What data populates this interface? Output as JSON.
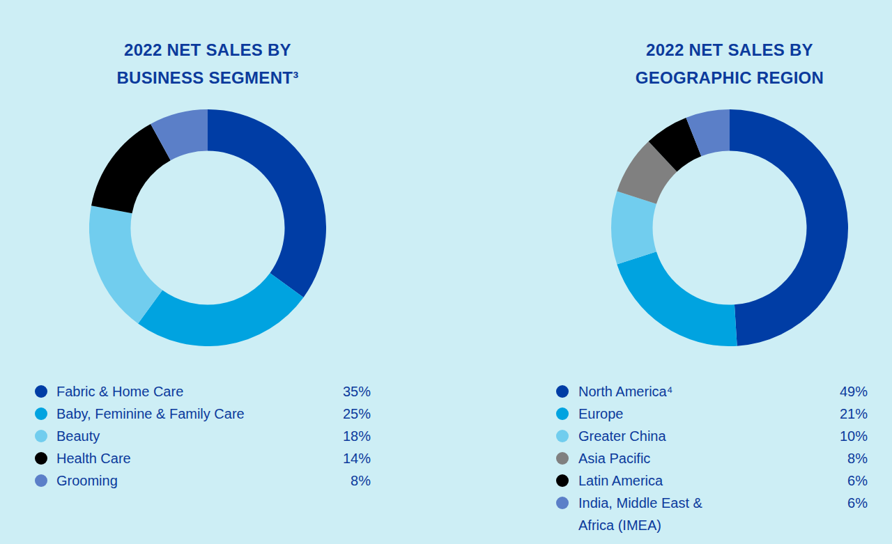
{
  "chart_data": [
    {
      "type": "doughnut",
      "title": "2022 NET SALES BY\nBUSINESS SEGMENT³",
      "categories": [
        "Fabric & Home Care",
        "Baby, Feminine & Family Care",
        "Beauty",
        "Health Care",
        "Grooming"
      ],
      "values": [
        35,
        25,
        18,
        14,
        8
      ],
      "value_labels": [
        "35%",
        "25%",
        "18%",
        "14%",
        "8%"
      ],
      "colors": [
        "#003da5",
        "#00a3e0",
        "#71cdee",
        "#000000",
        "#5b7fc8"
      ],
      "legend": "bottom"
    },
    {
      "type": "doughnut",
      "title": "2022 NET SALES BY\nGEOGRAPHIC REGION",
      "categories": [
        "North America⁴",
        "Europe",
        "Greater China",
        "Asia Pacific",
        "Latin America",
        "India, Middle East & Africa (IMEA)"
      ],
      "values": [
        49,
        21,
        10,
        8,
        6,
        6
      ],
      "value_labels": [
        "49%",
        "21%",
        "10%",
        "8%",
        "6%",
        "6%"
      ],
      "colors": [
        "#003da5",
        "#00a3e0",
        "#71cdee",
        "#808080",
        "#000000",
        "#5b7fc8"
      ],
      "legend": "bottom"
    }
  ]
}
